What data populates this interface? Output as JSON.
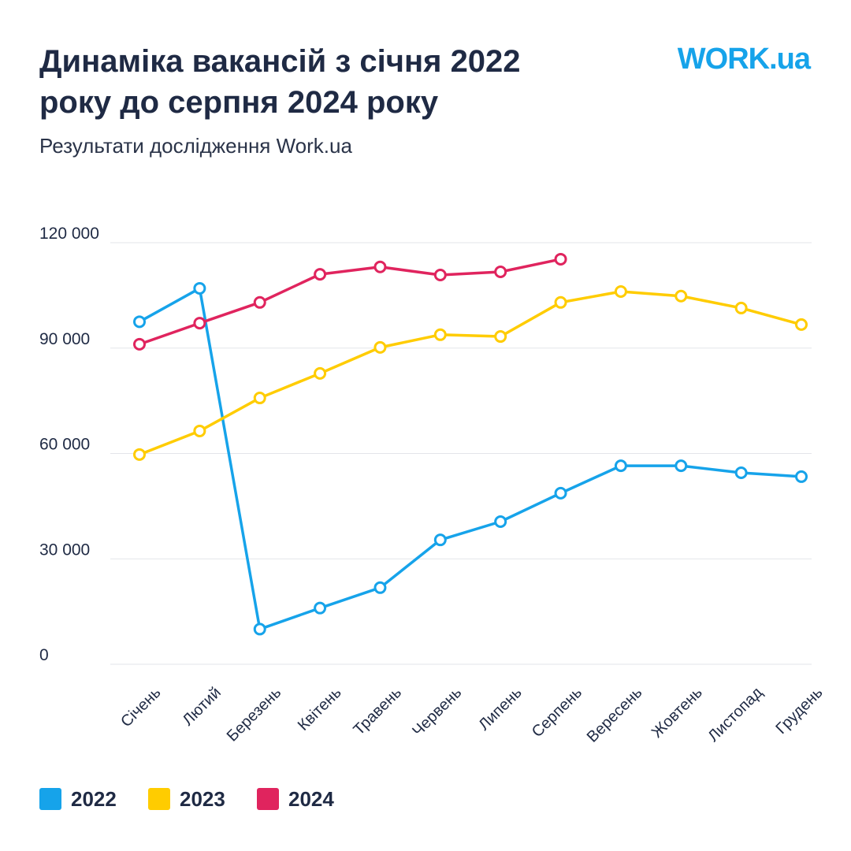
{
  "chart_data": {
    "type": "line",
    "title": "Динаміка вакансій з січня 2022 року до серпня 2024 року",
    "subtitle": "Результати дослідження Work.ua",
    "logo": "WORK.ua",
    "categories": [
      "Січень",
      "Лютий",
      "Березень",
      "Квітень",
      "Травень",
      "Червень",
      "Липень",
      "Серпень",
      "Вересень",
      "Жовтень",
      "Листопад",
      "Грудень"
    ],
    "series": [
      {
        "name": "2022",
        "color": "#16a3ea",
        "values": [
          97500,
          107000,
          10000,
          16000,
          21800,
          35400,
          40600,
          48700,
          56500,
          56500,
          54500,
          53400
        ]
      },
      {
        "name": "2023",
        "color": "#ffcc00",
        "values": [
          59700,
          66400,
          75800,
          82800,
          90200,
          93800,
          93300,
          103000,
          106100,
          104800,
          101400,
          96700
        ]
      },
      {
        "name": "2024",
        "color": "#e0245e",
        "values": [
          91100,
          97100,
          103000,
          111000,
          113100,
          110800,
          111700,
          115300,
          null,
          null,
          null,
          null
        ]
      }
    ],
    "ylim": [
      0,
      120000
    ],
    "yticks": [
      0,
      {
        "value": 30000,
        "label": "30 000"
      },
      {
        "value": 60000,
        "label": "60 000"
      },
      {
        "value": 90000,
        "label": "90 000"
      },
      {
        "value": 120000,
        "label": "120 000"
      }
    ],
    "grid": true,
    "legend": "bottom"
  }
}
